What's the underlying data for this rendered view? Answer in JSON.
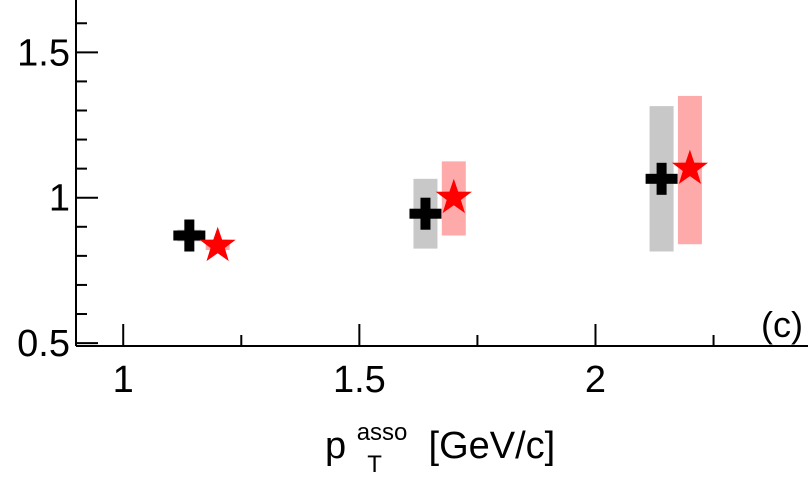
{
  "chart_data": {
    "type": "scatter",
    "panel_label": "(c)",
    "xlabel": {
      "base": "p",
      "subscript": "T",
      "superscript": "asso",
      "rest": " [GeV/c]"
    },
    "xlim": [
      0.9,
      2.45
    ],
    "ylim": [
      0.49,
      1.68
    ],
    "x_ticks": [
      {
        "value": 1,
        "label": "1"
      },
      {
        "value": 1.5,
        "label": "1.5"
      },
      {
        "value": 2,
        "label": "2"
      }
    ],
    "y_ticks": [
      {
        "value": 0.5,
        "label": "0.5"
      },
      {
        "value": 1,
        "label": "1"
      },
      {
        "value": 1.5,
        "label": "1.5"
      }
    ],
    "series": [
      {
        "marker": "cross",
        "color": "#000000",
        "syst_color": "#c8c8c8",
        "points": [
          {
            "x": 1.14,
            "y": 0.87,
            "err": 0.02,
            "syst": [
              0.85,
              0.89
            ]
          },
          {
            "x": 1.64,
            "y": 0.945,
            "err": 0.03,
            "syst": [
              0.825,
              1.065
            ]
          },
          {
            "x": 2.14,
            "y": 1.065,
            "err": 0.05,
            "syst": [
              0.815,
              1.315
            ]
          }
        ]
      },
      {
        "marker": "star",
        "color": "#ff0000",
        "syst_color": "#ffaaaa",
        "points": [
          {
            "x": 1.2,
            "y": 0.835,
            "err": 0.0,
            "syst": [
              0.82,
              0.855
            ]
          },
          {
            "x": 1.7,
            "y": 1.0,
            "err": 0.0,
            "syst": [
              0.87,
              1.125
            ]
          },
          {
            "x": 2.2,
            "y": 1.1,
            "err": 0.0,
            "syst": [
              0.84,
              1.35
            ]
          }
        ]
      }
    ]
  }
}
